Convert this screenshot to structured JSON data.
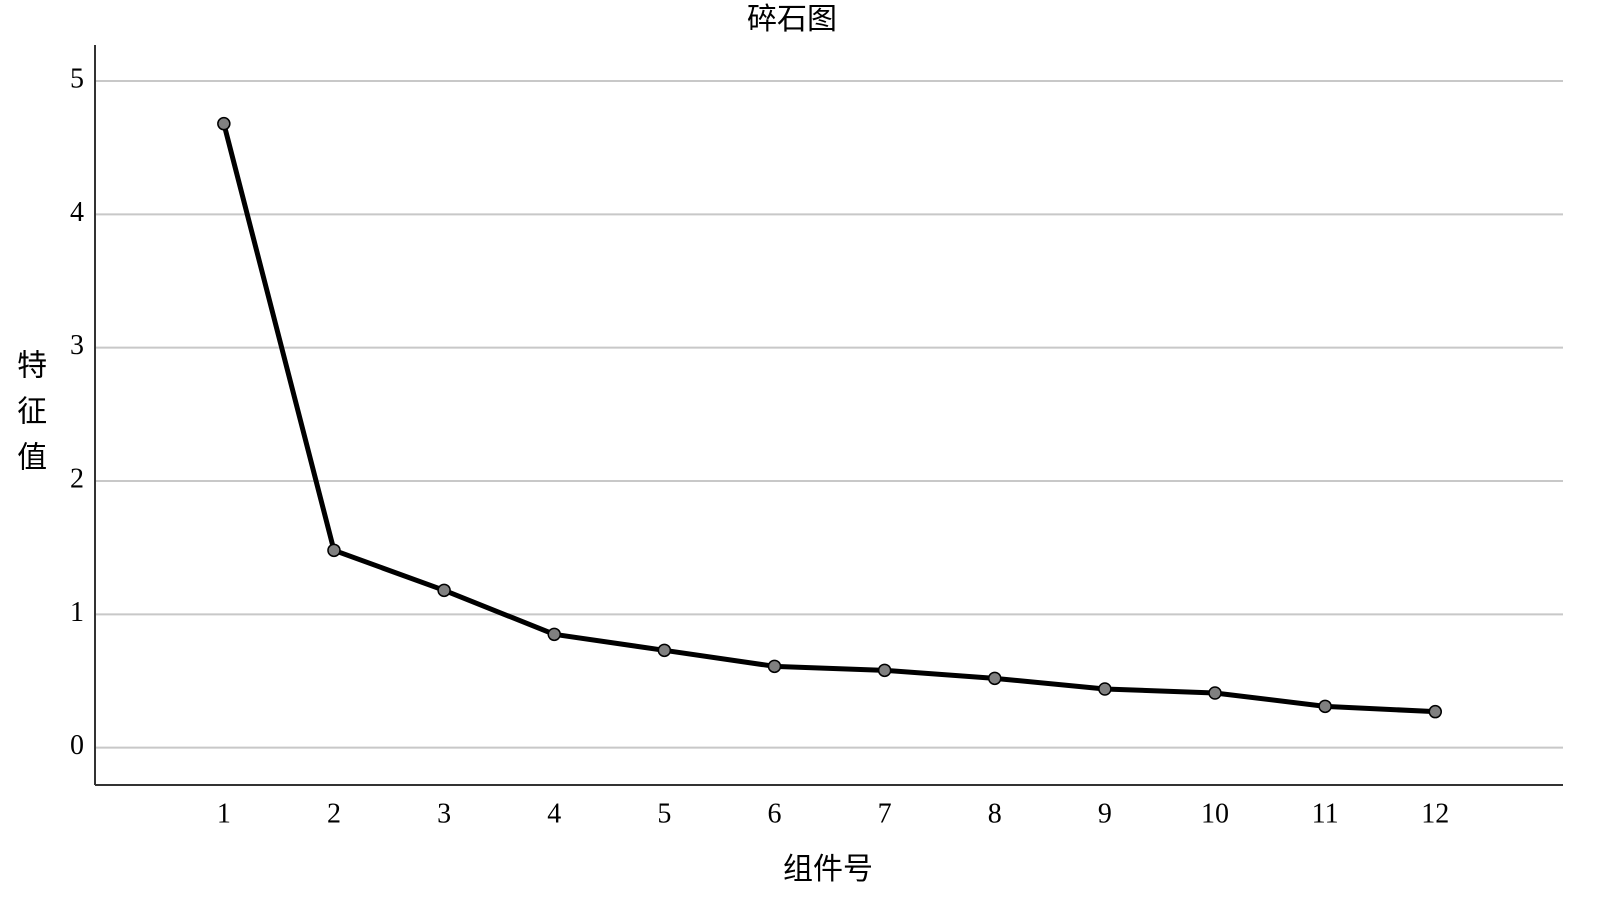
{
  "chart_data": {
    "type": "line",
    "title": "碎石图",
    "x_label": "组件号",
    "y_label": "特征值",
    "x": [
      1,
      2,
      3,
      4,
      5,
      6,
      7,
      8,
      9,
      10,
      11,
      12
    ],
    "series": [
      {
        "name": "特征值",
        "color": "#000000",
        "marker_color": "#808080",
        "values": [
          4.68,
          1.48,
          1.18,
          0.85,
          0.73,
          0.61,
          0.58,
          0.52,
          0.44,
          0.41,
          0.31,
          0.27
        ]
      }
    ],
    "xlim": [
      -0.17,
      13.16
    ],
    "xticks": [
      1,
      2,
      3,
      4,
      5,
      6,
      7,
      8,
      9,
      10,
      11,
      12
    ],
    "ylim": [
      -0.28,
      5.27
    ],
    "yticks": [
      0,
      1,
      2,
      3,
      4,
      5
    ],
    "grid": true,
    "legend": false
  }
}
